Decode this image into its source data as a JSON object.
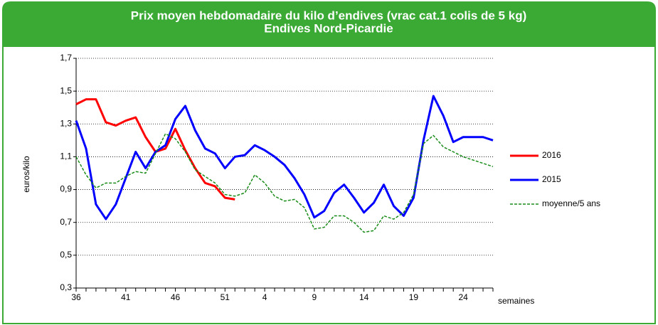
{
  "chart_data": {
    "type": "line",
    "title": "Prix moyen hebdomadaire du kilo d’endives (vrac cat.1 colis de 5 kg)",
    "subtitle": "Endives Nord-Picardie",
    "y_label": "euros/kilo",
    "x_label": "semaines",
    "categories": [
      "36",
      null,
      null,
      null,
      null,
      "41",
      null,
      null,
      null,
      null,
      "46",
      null,
      null,
      null,
      null,
      "51",
      null,
      null,
      null,
      "4",
      null,
      null,
      null,
      null,
      "9",
      null,
      null,
      null,
      null,
      "14",
      null,
      null,
      null,
      null,
      "19",
      null,
      null,
      null,
      null,
      "24",
      null,
      null,
      null
    ],
    "ylim": [
      0.3,
      1.7
    ],
    "yticks": [
      {
        "value": 0.3,
        "label": "0,3"
      },
      {
        "value": 0.5,
        "label": "0,5"
      },
      {
        "value": 0.7,
        "label": "0,7"
      },
      {
        "value": 0.9,
        "label": "0,9"
      },
      {
        "value": 1.1,
        "label": "1,1"
      },
      {
        "value": 1.3,
        "label": "1,3"
      },
      {
        "value": 1.5,
        "label": "1,5"
      },
      {
        "value": 1.7,
        "label": "1,7"
      }
    ],
    "grid": true,
    "legend": "right",
    "series": [
      {
        "name": "2016",
        "color": "#ff0000",
        "dash": false,
        "values": [
          1.42,
          1.45,
          1.45,
          1.31,
          1.29,
          1.32,
          1.34,
          1.22,
          1.13,
          1.15,
          1.27,
          1.14,
          1.03,
          0.94,
          0.92,
          0.85,
          0.84,
          null,
          null,
          null,
          null,
          null,
          null,
          null,
          null,
          null,
          null,
          null,
          null,
          null,
          null,
          null,
          null,
          null,
          null,
          null,
          null,
          null,
          null,
          null,
          null,
          null,
          null
        ]
      },
      {
        "name": "2015",
        "color": "#0000ff",
        "dash": false,
        "values": [
          1.32,
          1.15,
          0.81,
          0.72,
          0.81,
          0.97,
          1.13,
          1.03,
          1.13,
          1.17,
          1.33,
          1.41,
          1.26,
          1.15,
          1.12,
          1.03,
          1.1,
          1.11,
          1.17,
          1.14,
          1.1,
          1.05,
          0.97,
          0.87,
          0.73,
          0.77,
          0.88,
          0.93,
          0.85,
          0.76,
          0.82,
          0.93,
          0.8,
          0.74,
          0.85,
          1.2,
          1.47,
          1.35,
          1.19,
          1.22,
          1.22,
          1.22,
          1.2
        ]
      },
      {
        "name": "moyenne/5 ans",
        "color": "#1a8c1a",
        "dash": true,
        "values": [
          1.1,
          0.99,
          0.91,
          0.94,
          0.94,
          0.98,
          1.01,
          1.0,
          1.12,
          1.24,
          1.21,
          1.13,
          1.02,
          0.98,
          0.94,
          0.87,
          0.86,
          0.88,
          0.99,
          0.94,
          0.86,
          0.83,
          0.84,
          0.79,
          0.66,
          0.67,
          0.74,
          0.74,
          0.7,
          0.64,
          0.65,
          0.74,
          0.72,
          0.76,
          0.87,
          1.18,
          1.23,
          1.16,
          1.13,
          1.1,
          1.08,
          1.06,
          1.04
        ]
      }
    ]
  }
}
